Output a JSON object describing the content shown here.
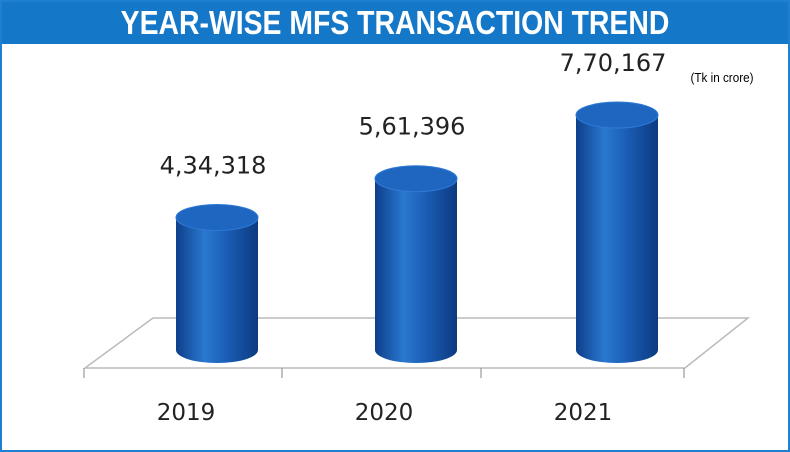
{
  "chart_data": {
    "type": "bar",
    "style": "3d-cylinder",
    "title": "YEAR-WISE MFS TRANSACTION TREND",
    "unit": "(Tk in crore)",
    "categories": [
      "2019",
      "2020",
      "2021"
    ],
    "values": [
      434318,
      561396,
      770167
    ],
    "data_labels": [
      "4,34,318",
      "5,61,396",
      "7,70,167"
    ],
    "grid": false,
    "colors": {
      "bar": "#1a5fb4",
      "title_bg": "#1477c8",
      "border": "#1f7fd0"
    }
  }
}
